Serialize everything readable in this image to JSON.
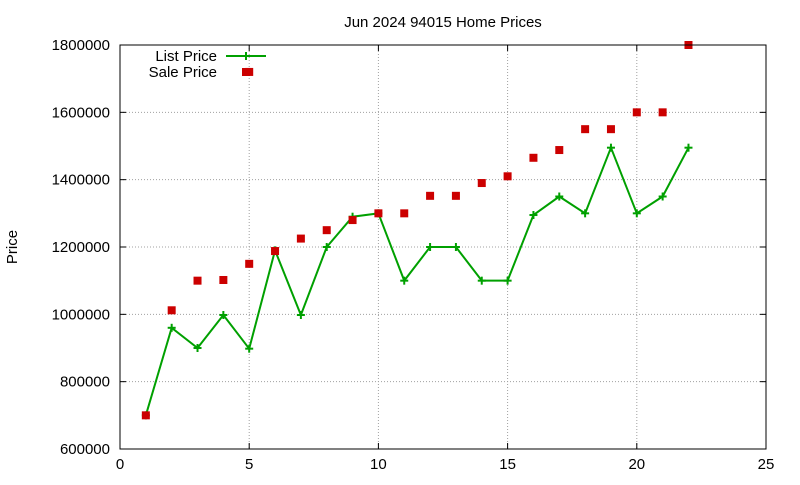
{
  "chart_data": {
    "type": "line",
    "title": "Jun 2024 94015 Home Prices",
    "xlabel": "",
    "ylabel": "Price",
    "xlim": [
      0,
      25
    ],
    "ylim": [
      600000,
      1800000
    ],
    "xticks": [
      0,
      5,
      10,
      15,
      20,
      25
    ],
    "yticks": [
      600000,
      800000,
      1000000,
      1200000,
      1400000,
      1600000,
      1800000
    ],
    "grid": true,
    "legend_position": "top-left",
    "series": [
      {
        "name": "List Price",
        "style": "line+cross",
        "color": "#00a000",
        "x": [
          1,
          2,
          3,
          4,
          5,
          6,
          7,
          8,
          9,
          10,
          11,
          12,
          13,
          14,
          15,
          16,
          17,
          18,
          19,
          20,
          21,
          22
        ],
        "y": [
          700000,
          960000,
          900000,
          998000,
          898000,
          1190000,
          998000,
          1200000,
          1290000,
          1300000,
          1100000,
          1200000,
          1200000,
          1100000,
          1100000,
          1295000,
          1350000,
          1300000,
          1495000,
          1300000,
          1350000,
          1495000
        ]
      },
      {
        "name": "Sale Price",
        "style": "square",
        "color": "#cc0000",
        "x": [
          1,
          2,
          3,
          4,
          5,
          5,
          6,
          7,
          8,
          9,
          10,
          11,
          12,
          13,
          14,
          15,
          16,
          17,
          18,
          19,
          20,
          21,
          22
        ],
        "y": [
          700000,
          1012000,
          1100000,
          1102000,
          1150000,
          1720000,
          1188000,
          1225000,
          1250000,
          1280000,
          1300000,
          1300000,
          1352000,
          1352000,
          1390000,
          1410000,
          1465000,
          1488000,
          1550000,
          1550000,
          1600000,
          1600000,
          1800000
        ]
      }
    ]
  }
}
